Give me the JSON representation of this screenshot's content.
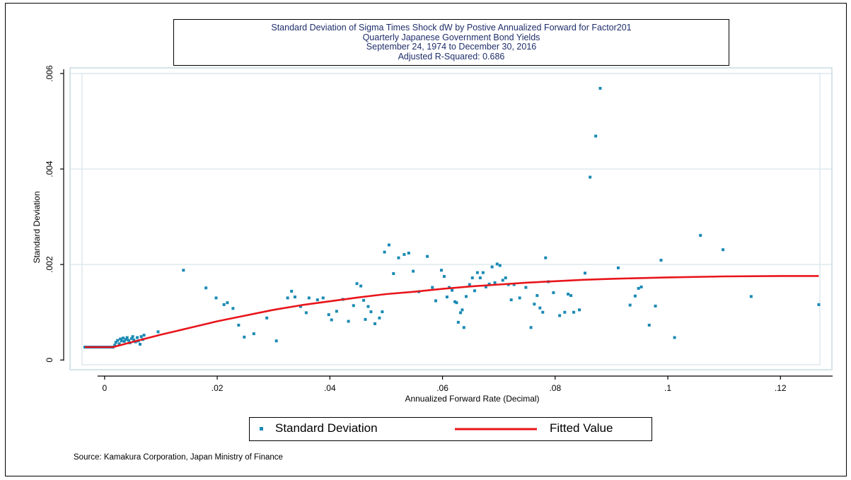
{
  "chart_data": {
    "type": "scatter",
    "title_lines": [
      "Standard Deviation of Sigma Times Shock dW by Postive Annualized Forward for Factor201",
      "Quarterly Japanese Government Bond Yields",
      "September 24, 1974 to December 30, 2016",
      "Adjusted R-Squared: 0.686"
    ],
    "xlabel": "Annualized Forward Rate (Decimal)",
    "ylabel": "Standard Deviation",
    "xlim": [
      -0.004,
      0.127
    ],
    "ylim": [
      -0.0001,
      0.006
    ],
    "x_ticks": [
      0,
      0.02,
      0.04,
      0.06,
      0.08,
      0.1,
      0.12
    ],
    "x_tick_labels": [
      "0",
      ".02",
      ".04",
      ".06",
      ".08",
      ".1",
      ".12"
    ],
    "y_ticks": [
      0,
      0.002,
      0.004,
      0.006
    ],
    "y_tick_labels": [
      "0",
      ".002",
      ".004",
      ".006"
    ],
    "grid": true,
    "legend_position": "bottom",
    "source": "Source: Kamakura Corporation, Japan Ministry of Finance",
    "colors": {
      "points": "#1a8ab4",
      "fit": "#e8151b",
      "grid": "#dde9ee",
      "plot_border": "#c8dbe2",
      "title_text": "#1f2e6b"
    },
    "series": [
      {
        "name": "Standard Deviation",
        "kind": "scatter",
        "points": [
          [
            -0.0035,
            0.00027
          ],
          [
            -0.003,
            0.00027
          ],
          [
            -0.0025,
            0.00027
          ],
          [
            -0.002,
            0.00027
          ],
          [
            -0.0015,
            0.00027
          ],
          [
            -0.001,
            0.00027
          ],
          [
            -0.0005,
            0.00027
          ],
          [
            0.0,
            0.00027
          ],
          [
            0.0005,
            0.00027
          ],
          [
            0.001,
            0.00027
          ],
          [
            0.0015,
            0.00027
          ],
          [
            0.0018,
            0.00031
          ],
          [
            0.002,
            0.00037
          ],
          [
            0.0023,
            0.00041
          ],
          [
            0.0026,
            0.00034
          ],
          [
            0.0028,
            0.00044
          ],
          [
            0.003,
            0.0004
          ],
          [
            0.0033,
            0.00046
          ],
          [
            0.0035,
            0.00039
          ],
          [
            0.0038,
            0.00043
          ],
          [
            0.004,
            0.00047
          ],
          [
            0.0043,
            0.00041
          ],
          [
            0.0045,
            0.00036
          ],
          [
            0.0048,
            0.00045
          ],
          [
            0.005,
            0.00049
          ],
          [
            0.0052,
            0.00042
          ],
          [
            0.0055,
            0.00038
          ],
          [
            0.0058,
            0.00047
          ],
          [
            0.006,
            0.0004
          ],
          [
            0.0063,
            0.00033
          ],
          [
            0.0065,
            0.00049
          ],
          [
            0.0068,
            0.00043
          ],
          [
            0.007,
            0.00052
          ],
          [
            0.0095,
            0.00059
          ],
          [
            0.014,
            0.00188
          ],
          [
            0.018,
            0.00151
          ],
          [
            0.0198,
            0.0013
          ],
          [
            0.0212,
            0.00116
          ],
          [
            0.0218,
            0.0012
          ],
          [
            0.0228,
            0.00108
          ],
          [
            0.0238,
            0.00073
          ],
          [
            0.0248,
            0.00048
          ],
          [
            0.0265,
            0.00055
          ],
          [
            0.0288,
            0.00088
          ],
          [
            0.0305,
            0.0004
          ],
          [
            0.0325,
            0.0013
          ],
          [
            0.0332,
            0.00144
          ],
          [
            0.0338,
            0.00132
          ],
          [
            0.0348,
            0.00112
          ],
          [
            0.0358,
            0.00099
          ],
          [
            0.0363,
            0.0013
          ],
          [
            0.0378,
            0.00126
          ],
          [
            0.0388,
            0.0013
          ],
          [
            0.0398,
            0.00095
          ],
          [
            0.0403,
            0.00084
          ],
          [
            0.0412,
            0.00102
          ],
          [
            0.0423,
            0.00127
          ],
          [
            0.0433,
            0.00081
          ],
          [
            0.0442,
            0.00114
          ],
          [
            0.0448,
            0.0016
          ],
          [
            0.0455,
            0.00155
          ],
          [
            0.046,
            0.00125
          ],
          [
            0.0463,
            0.00085
          ],
          [
            0.0468,
            0.00112
          ],
          [
            0.0473,
            0.00101
          ],
          [
            0.048,
            0.00076
          ],
          [
            0.0488,
            0.00088
          ],
          [
            0.0493,
            0.00101
          ],
          [
            0.0497,
            0.00226
          ],
          [
            0.0505,
            0.00241
          ],
          [
            0.0513,
            0.00181
          ],
          [
            0.0522,
            0.00214
          ],
          [
            0.0532,
            0.00221
          ],
          [
            0.054,
            0.00224
          ],
          [
            0.0548,
            0.00186
          ],
          [
            0.0558,
            0.00143
          ],
          [
            0.0573,
            0.00217
          ],
          [
            0.0582,
            0.00152
          ],
          [
            0.0588,
            0.00124
          ],
          [
            0.0598,
            0.00188
          ],
          [
            0.0603,
            0.00175
          ],
          [
            0.0608,
            0.00132
          ],
          [
            0.0612,
            0.00152
          ],
          [
            0.0617,
            0.00146
          ],
          [
            0.0622,
            0.00122
          ],
          [
            0.0625,
            0.0012
          ],
          [
            0.0628,
            0.00079
          ],
          [
            0.0632,
            0.00099
          ],
          [
            0.0635,
            0.00105
          ],
          [
            0.0638,
            0.00068
          ],
          [
            0.0642,
            0.00133
          ],
          [
            0.0648,
            0.00158
          ],
          [
            0.0653,
            0.00172
          ],
          [
            0.0657,
            0.00145
          ],
          [
            0.0662,
            0.00183
          ],
          [
            0.0667,
            0.00172
          ],
          [
            0.0672,
            0.00183
          ],
          [
            0.0677,
            0.00153
          ],
          [
            0.0683,
            0.00159
          ],
          [
            0.0688,
            0.00195
          ],
          [
            0.0693,
            0.00162
          ],
          [
            0.0697,
            0.00201
          ],
          [
            0.0702,
            0.00198
          ],
          [
            0.0707,
            0.00167
          ],
          [
            0.0712,
            0.00172
          ],
          [
            0.0717,
            0.00158
          ],
          [
            0.0722,
            0.00126
          ],
          [
            0.0727,
            0.00158
          ],
          [
            0.0737,
            0.0013
          ],
          [
            0.0748,
            0.00152
          ],
          [
            0.0757,
            0.00068
          ],
          [
            0.0763,
            0.00117
          ],
          [
            0.0768,
            0.00135
          ],
          [
            0.0773,
            0.00109
          ],
          [
            0.0778,
            0.001
          ],
          [
            0.0783,
            0.00214
          ],
          [
            0.0788,
            0.00164
          ],
          [
            0.0797,
            0.00141
          ],
          [
            0.0808,
            0.00093
          ],
          [
            0.0817,
            0.001
          ],
          [
            0.0823,
            0.00138
          ],
          [
            0.0828,
            0.00135
          ],
          [
            0.0833,
            0.001
          ],
          [
            0.0843,
            0.00105
          ],
          [
            0.0853,
            0.00182
          ],
          [
            0.0862,
            0.00383
          ],
          [
            0.0872,
            0.00469
          ],
          [
            0.088,
            0.00569
          ],
          [
            0.0912,
            0.00193
          ],
          [
            0.0933,
            0.00115
          ],
          [
            0.0942,
            0.00134
          ],
          [
            0.0948,
            0.0015
          ],
          [
            0.0953,
            0.00153
          ],
          [
            0.0967,
            0.00073
          ],
          [
            0.0978,
            0.00113
          ],
          [
            0.0988,
            0.00209
          ],
          [
            0.1012,
            0.00047
          ],
          [
            0.1058,
            0.00261
          ],
          [
            0.1098,
            0.00231
          ],
          [
            0.1148,
            0.00133
          ],
          [
            0.1268,
            0.00116
          ]
        ]
      },
      {
        "name": "Fitted Value",
        "kind": "line",
        "points": [
          [
            -0.0035,
            0.00027
          ],
          [
            0.0015,
            0.00027
          ],
          [
            0.005,
            0.00038
          ],
          [
            0.01,
            0.00053
          ],
          [
            0.015,
            0.00067
          ],
          [
            0.02,
            0.00081
          ],
          [
            0.025,
            0.00093
          ],
          [
            0.03,
            0.00105
          ],
          [
            0.035,
            0.00115
          ],
          [
            0.04,
            0.00123
          ],
          [
            0.045,
            0.00131
          ],
          [
            0.05,
            0.00138
          ],
          [
            0.055,
            0.00143
          ],
          [
            0.06,
            0.00149
          ],
          [
            0.065,
            0.00154
          ],
          [
            0.07,
            0.00158
          ],
          [
            0.075,
            0.00162
          ],
          [
            0.08,
            0.00165
          ],
          [
            0.085,
            0.00168
          ],
          [
            0.09,
            0.0017
          ],
          [
            0.1,
            0.00173
          ],
          [
            0.11,
            0.00175
          ],
          [
            0.12,
            0.00176
          ],
          [
            0.1268,
            0.00176
          ]
        ]
      }
    ]
  }
}
